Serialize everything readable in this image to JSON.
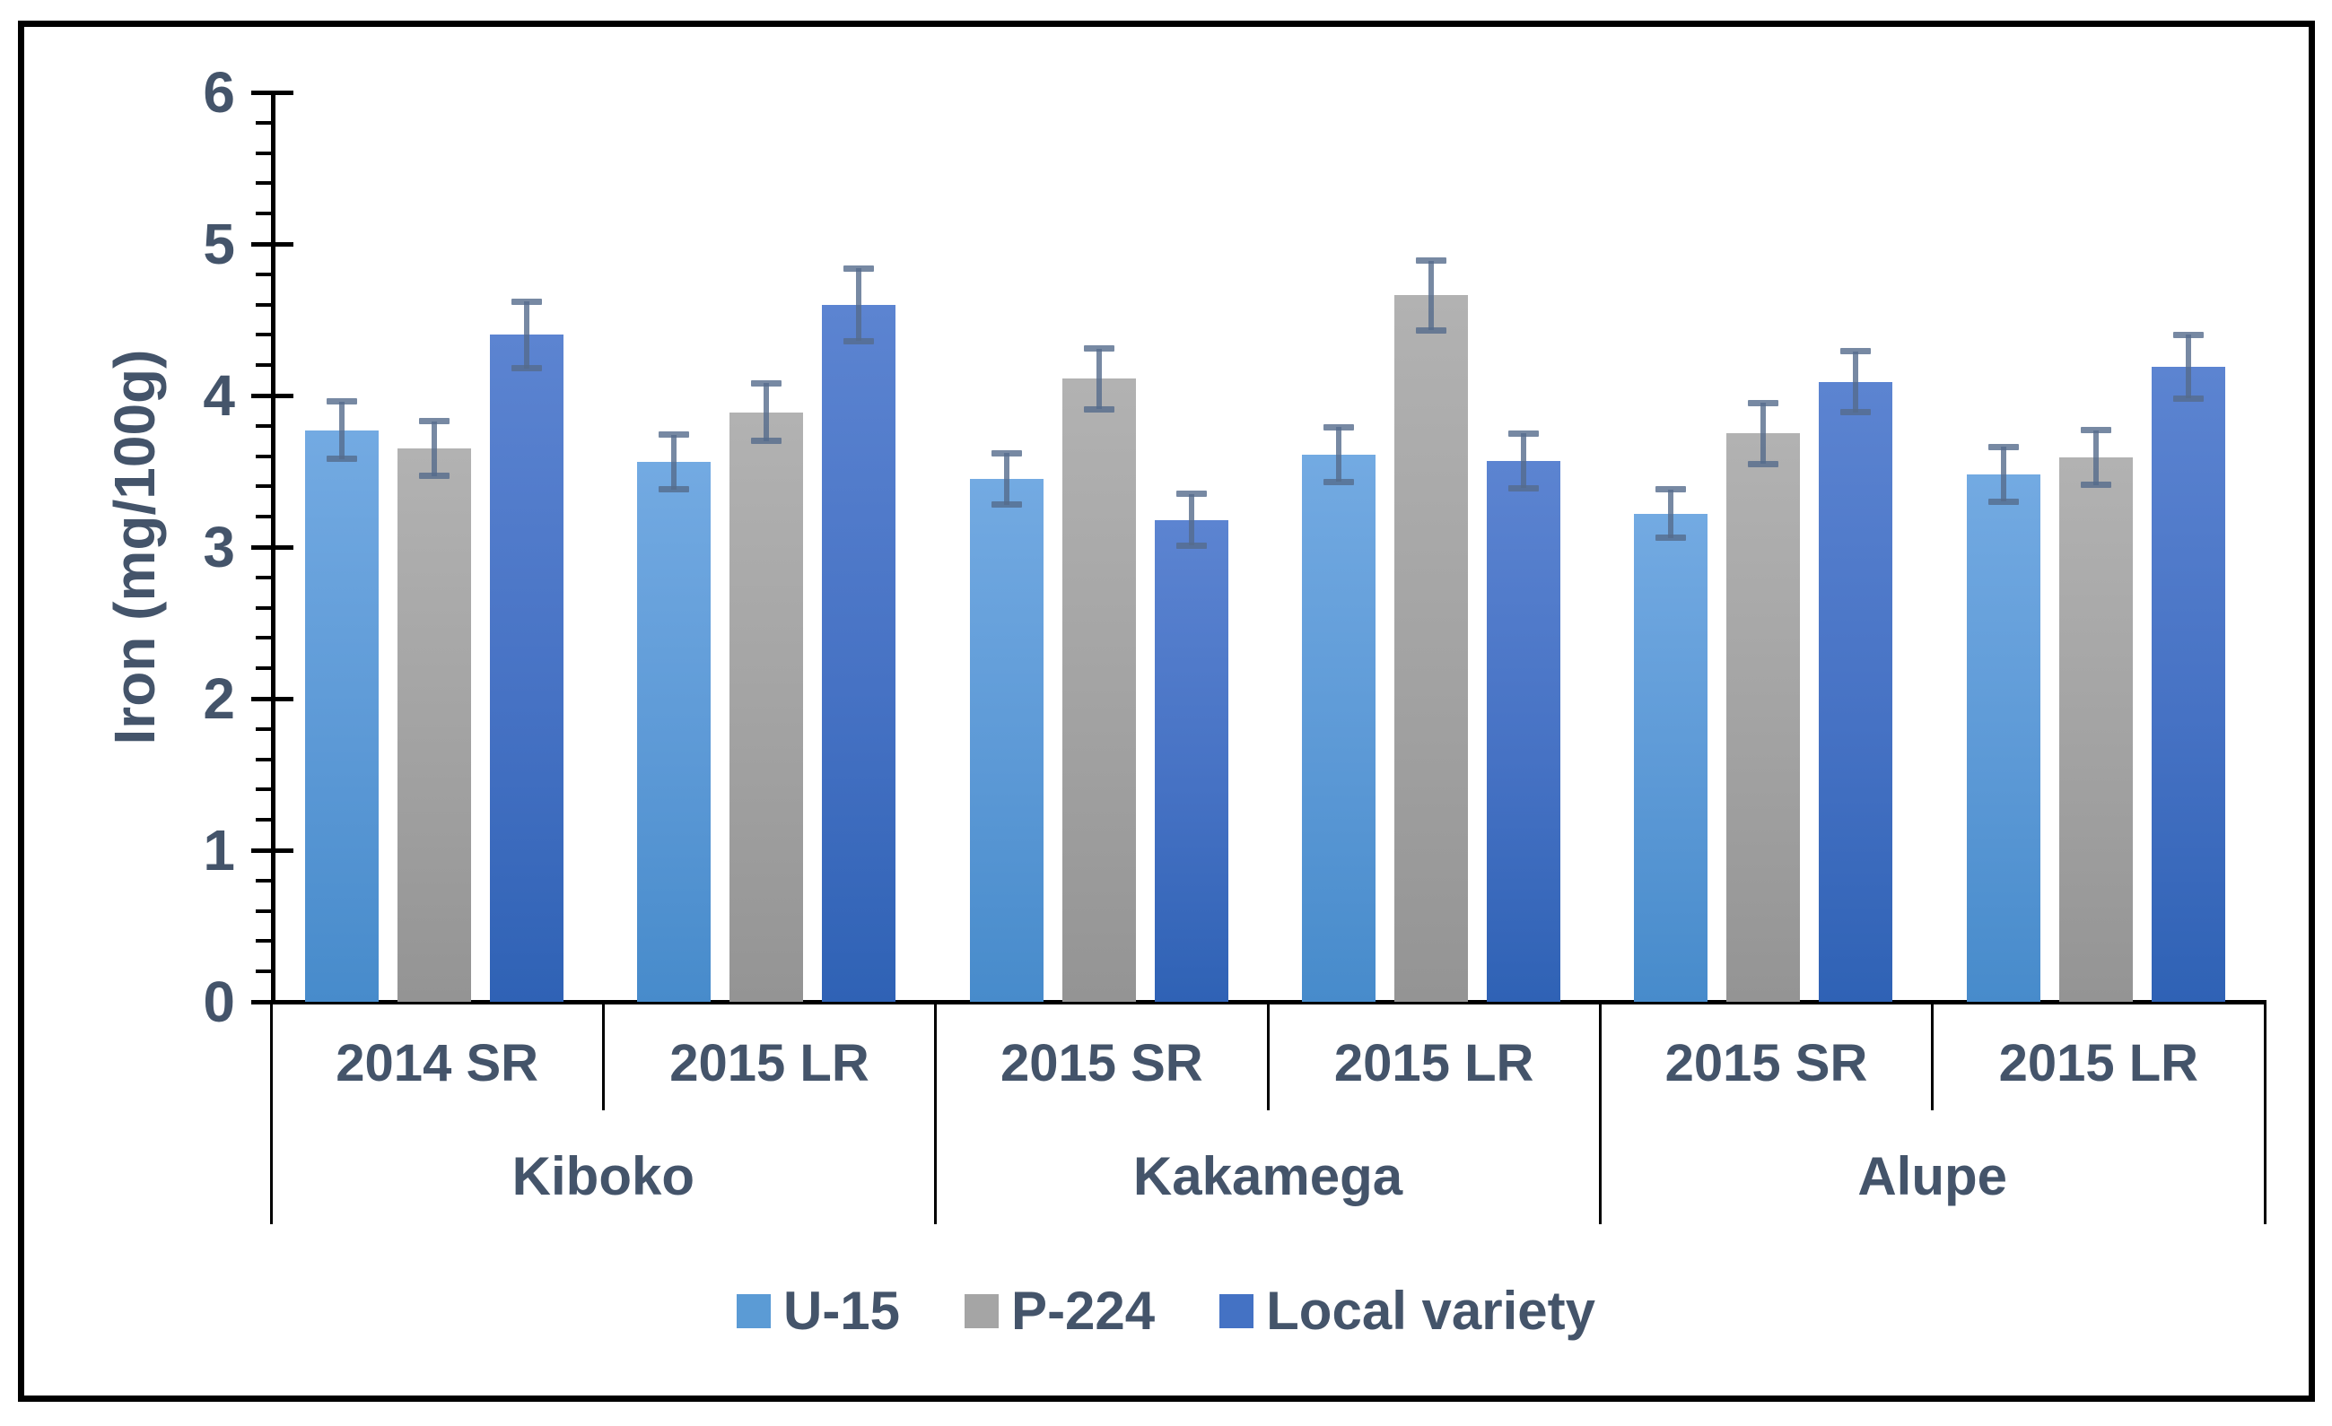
{
  "figure": {
    "background": "#ffffff",
    "frame_color": "#000000",
    "text_color": "#44546A",
    "axis_color": "#000000",
    "error_bar_color": "rgba(85,108,140,0.80)"
  },
  "chart_data": {
    "type": "bar",
    "title": "",
    "xlabel": "",
    "ylabel": "Iron (mg/100g)",
    "ylim": [
      0,
      6
    ],
    "ytick_step": 1,
    "yminor_step": 0.2,
    "grid": false,
    "legend_position": "bottom-center",
    "group_axis": {
      "locations": [
        {
          "label": "Kiboko",
          "seasons": [
            "2014 SR",
            "2015 LR"
          ]
        },
        {
          "label": "Kakamega",
          "seasons": [
            "2015 SR",
            "2015 LR"
          ]
        },
        {
          "label": "Alupe",
          "seasons": [
            "2015 SR",
            "2015 LR"
          ]
        }
      ]
    },
    "categories": [
      "Kiboko 2014 SR",
      "Kiboko 2015 LR",
      "Kakamega 2015 SR",
      "Kakamega 2015 LR",
      "Alupe 2015 SR",
      "Alupe 2015 LR"
    ],
    "series": [
      {
        "name": "U-15",
        "legend_color": "#5B9BD5",
        "gradient": [
          "#73AAE2",
          "#5C99D6",
          "#478BCB"
        ],
        "values": [
          3.77,
          3.56,
          3.45,
          3.61,
          3.22,
          3.48
        ],
        "errors": [
          0.19,
          0.18,
          0.17,
          0.18,
          0.16,
          0.18
        ]
      },
      {
        "name": "P-224",
        "legend_color": "#A5A5A5",
        "gradient": [
          "#B2B2B2",
          "#A2A2A2",
          "#949494"
        ],
        "values": [
          3.65,
          3.89,
          4.11,
          4.66,
          3.75,
          3.59
        ],
        "errors": [
          0.18,
          0.19,
          0.2,
          0.23,
          0.2,
          0.18
        ]
      },
      {
        "name": "Local variety",
        "legend_color": "#4472C4",
        "gradient": [
          "#5C84D1",
          "#4672C4",
          "#2F62B5"
        ],
        "values": [
          4.4,
          4.6,
          3.18,
          3.57,
          4.09,
          4.19
        ],
        "errors": [
          0.22,
          0.24,
          0.17,
          0.18,
          0.2,
          0.21
        ]
      }
    ]
  }
}
